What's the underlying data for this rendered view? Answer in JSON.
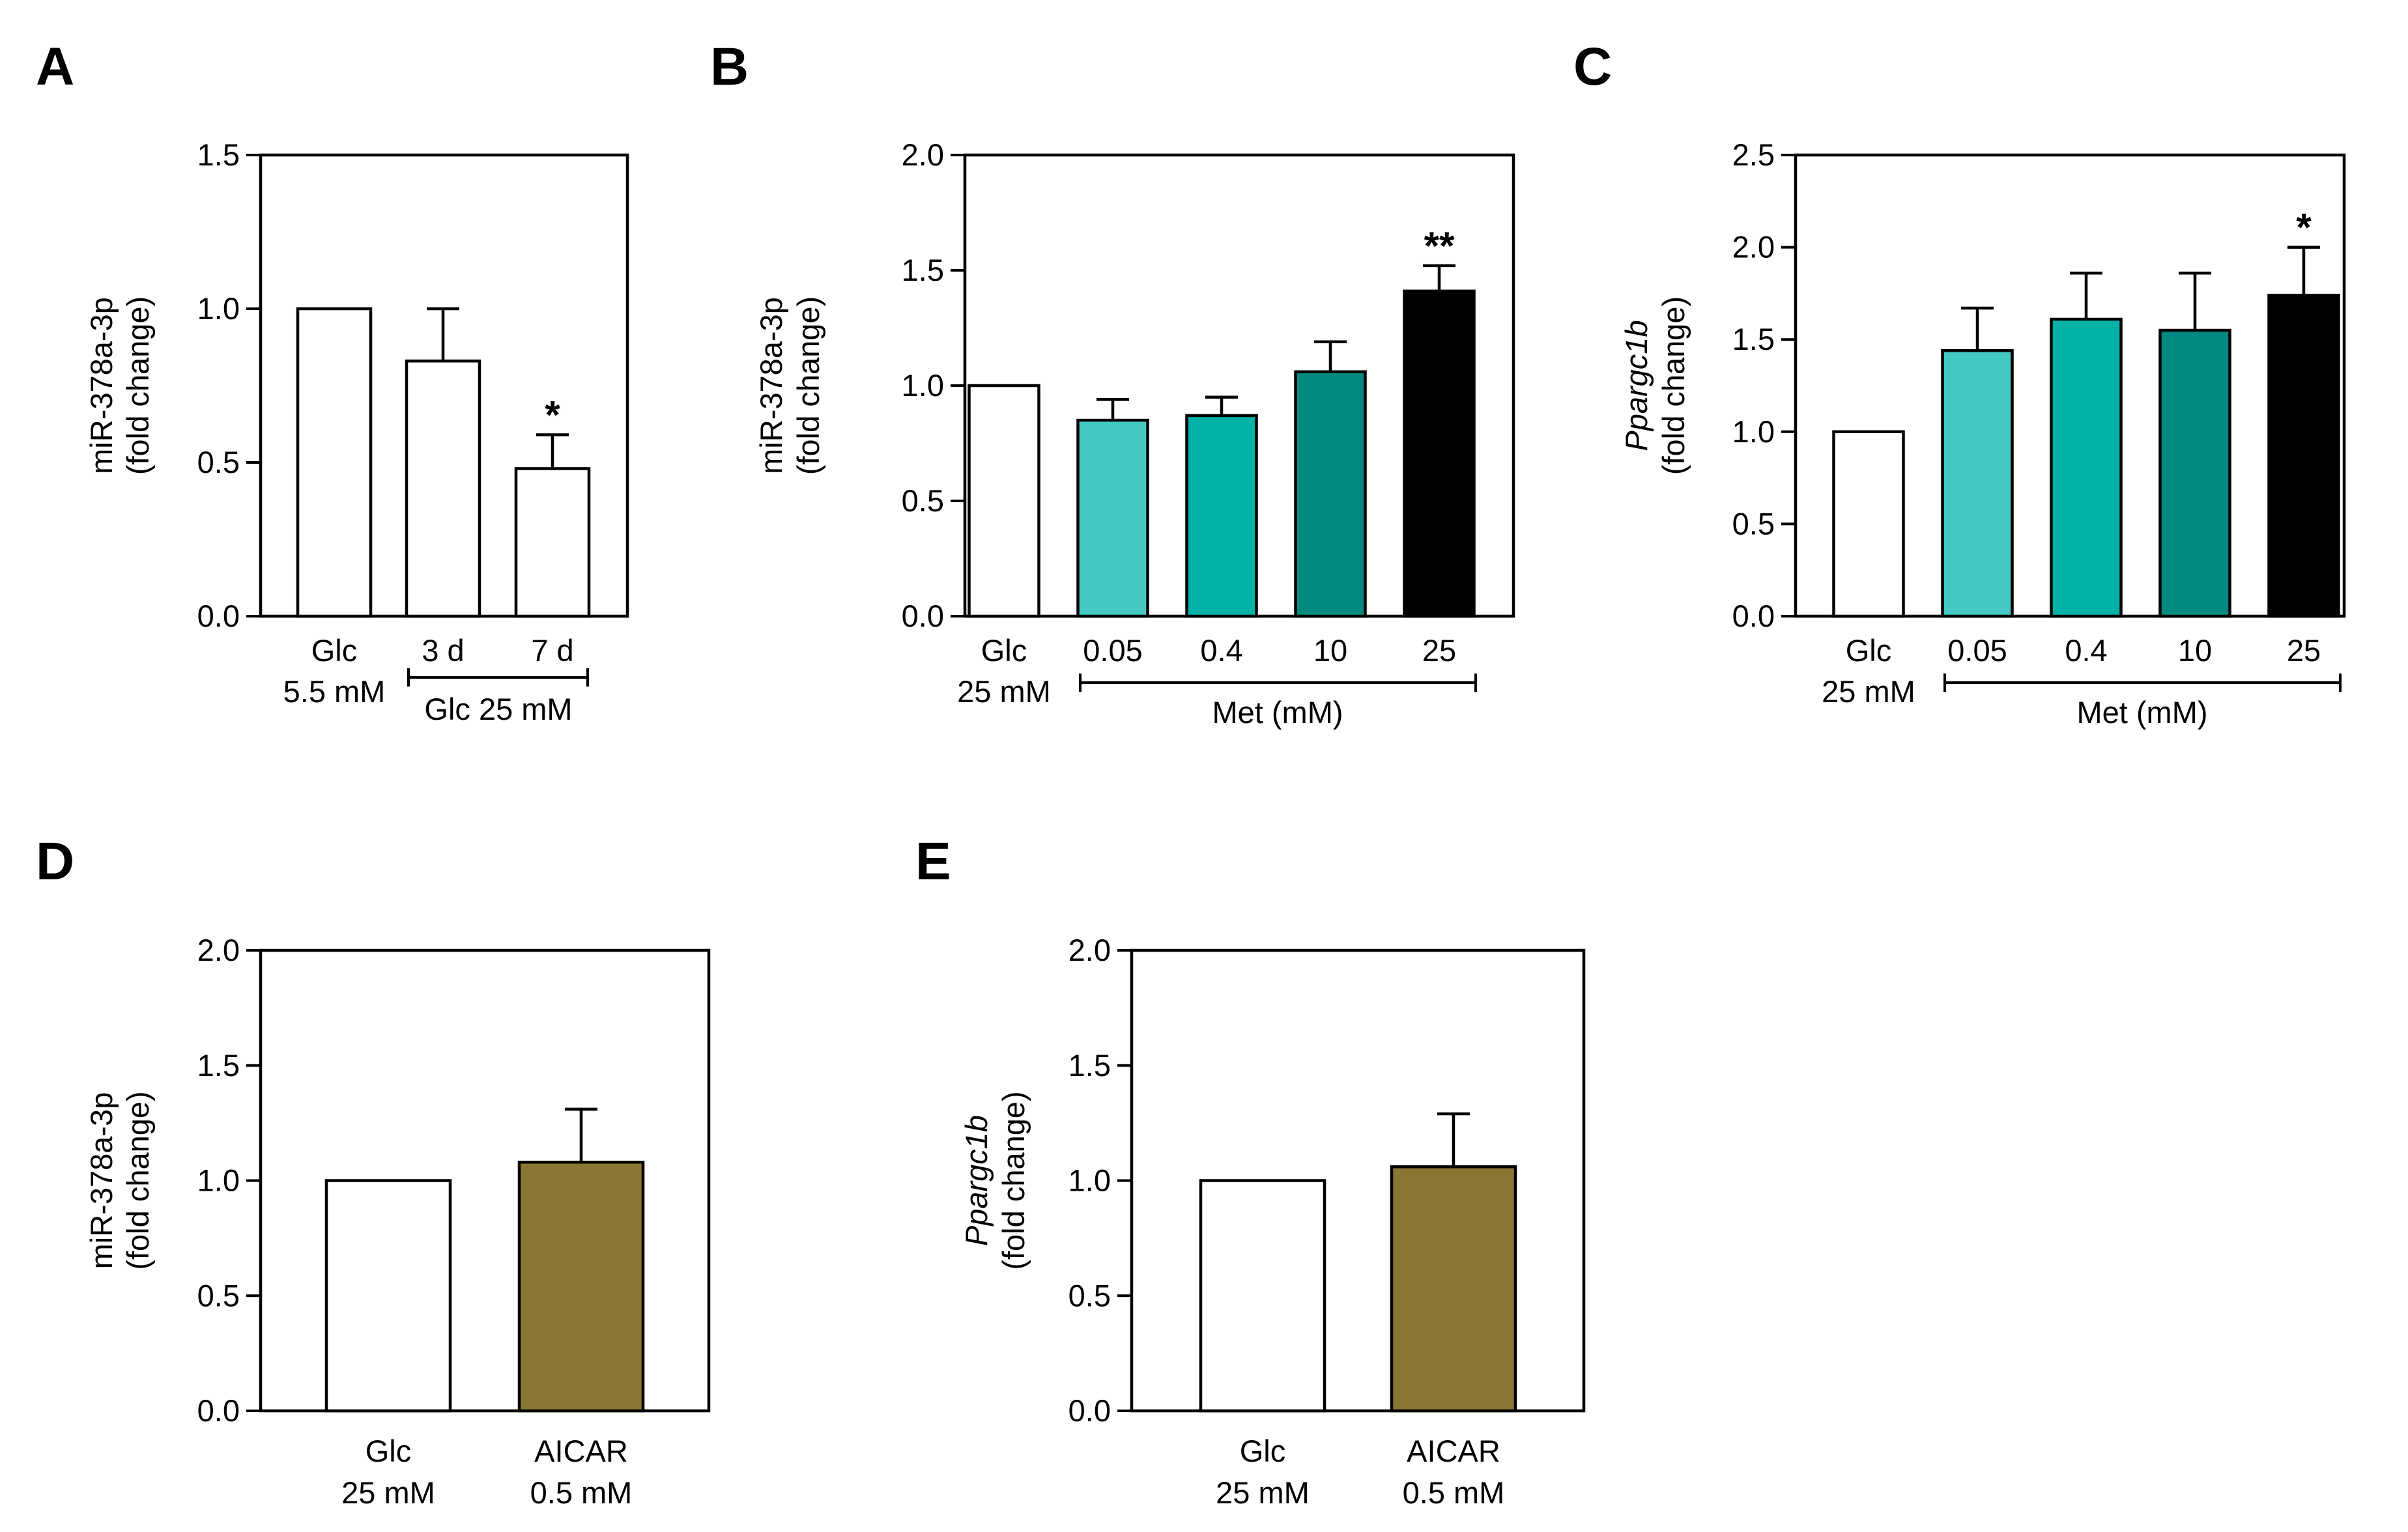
{
  "chart_data": [
    {
      "panel": "A",
      "type": "bar",
      "ylabel_italic": "",
      "ylabel": "miR-378a-3p",
      "ylabel2": "(fold change)",
      "ylim": [
        0,
        1.5
      ],
      "yticks": [
        "0.0",
        "0.5",
        "1.0",
        "1.5"
      ],
      "categories": [
        {
          "label": "Glc",
          "sub": "5.5 mM",
          "value": 1.0,
          "error": 0,
          "color": "#ffffff",
          "sig": ""
        },
        {
          "label": "3 d",
          "sub": "",
          "value": 0.83,
          "error": 0.17,
          "color": "#ffffff",
          "sig": ""
        },
        {
          "label": "7 d",
          "sub": "",
          "value": 0.48,
          "error": 0.11,
          "color": "#ffffff",
          "sig": "*"
        }
      ],
      "group_label": "Glc 25 mM"
    },
    {
      "panel": "B",
      "type": "bar",
      "ylabel_italic": "",
      "ylabel": "miR-378a-3p",
      "ylabel2": "(fold change)",
      "ylim": [
        0,
        2.0
      ],
      "yticks": [
        "0.0",
        "0.5",
        "1.0",
        "1.5",
        "2.0"
      ],
      "categories": [
        {
          "label": "Glc",
          "sub": "25 mM",
          "value": 1.0,
          "error": 0,
          "color": "#ffffff",
          "sig": ""
        },
        {
          "label": "0.05",
          "sub": "",
          "value": 0.85,
          "error": 0.09,
          "color": "#44c8c4",
          "sig": ""
        },
        {
          "label": "0.4",
          "sub": "",
          "value": 0.87,
          "error": 0.08,
          "color": "#00b3a6",
          "sig": ""
        },
        {
          "label": "10",
          "sub": "",
          "value": 1.06,
          "error": 0.13,
          "color": "#028a80",
          "sig": ""
        },
        {
          "label": "25",
          "sub": "",
          "value": 1.41,
          "error": 0.11,
          "color": "#000000",
          "sig": "**"
        }
      ],
      "group_label": "Met (mM)"
    },
    {
      "panel": "C",
      "type": "bar",
      "ylabel_italic": "Ppargc1b",
      "ylabel": "",
      "ylabel2": "(fold change)",
      "ylim": [
        0,
        2.5
      ],
      "yticks": [
        "0.0",
        "0.5",
        "1.0",
        "1.5",
        "2.0",
        "2.5"
      ],
      "categories": [
        {
          "label": "Glc",
          "sub": "25 mM",
          "value": 1.0,
          "error": 0,
          "color": "#ffffff",
          "sig": ""
        },
        {
          "label": "0.05",
          "sub": "",
          "value": 1.44,
          "error": 0.23,
          "color": "#44c8c4",
          "sig": ""
        },
        {
          "label": "0.4",
          "sub": "",
          "value": 1.61,
          "error": 0.25,
          "color": "#00b3a6",
          "sig": ""
        },
        {
          "label": "10",
          "sub": "",
          "value": 1.55,
          "error": 0.31,
          "color": "#028a80",
          "sig": ""
        },
        {
          "label": "25",
          "sub": "",
          "value": 1.74,
          "error": 0.26,
          "color": "#000000",
          "sig": "*"
        }
      ],
      "group_label": "Met (mM)"
    },
    {
      "panel": "D",
      "type": "bar",
      "ylabel_italic": "",
      "ylabel": "miR-378a-3p",
      "ylabel2": "(fold change)",
      "ylim": [
        0,
        2.0
      ],
      "yticks": [
        "0.0",
        "0.5",
        "1.0",
        "1.5",
        "2.0"
      ],
      "categories": [
        {
          "label": "Glc",
          "sub": "25 mM",
          "value": 1.0,
          "error": 0,
          "color": "#ffffff",
          "sig": ""
        },
        {
          "label": "AICAR",
          "sub": "0.5 mM",
          "value": 1.08,
          "error": 0.23,
          "color": "#8b7734",
          "sig": ""
        }
      ],
      "group_label": ""
    },
    {
      "panel": "E",
      "type": "bar",
      "ylabel_italic": "Ppargc1b",
      "ylabel": "",
      "ylabel2": "(fold change)",
      "ylim": [
        0,
        2.0
      ],
      "yticks": [
        "0.0",
        "0.5",
        "1.0",
        "1.5",
        "2.0"
      ],
      "categories": [
        {
          "label": "Glc",
          "sub": "25 mM",
          "value": 1.0,
          "error": 0,
          "color": "#ffffff",
          "sig": ""
        },
        {
          "label": "AICAR",
          "sub": "0.5 mM",
          "value": 1.06,
          "error": 0.23,
          "color": "#8b7734",
          "sig": ""
        }
      ],
      "group_label": ""
    }
  ]
}
